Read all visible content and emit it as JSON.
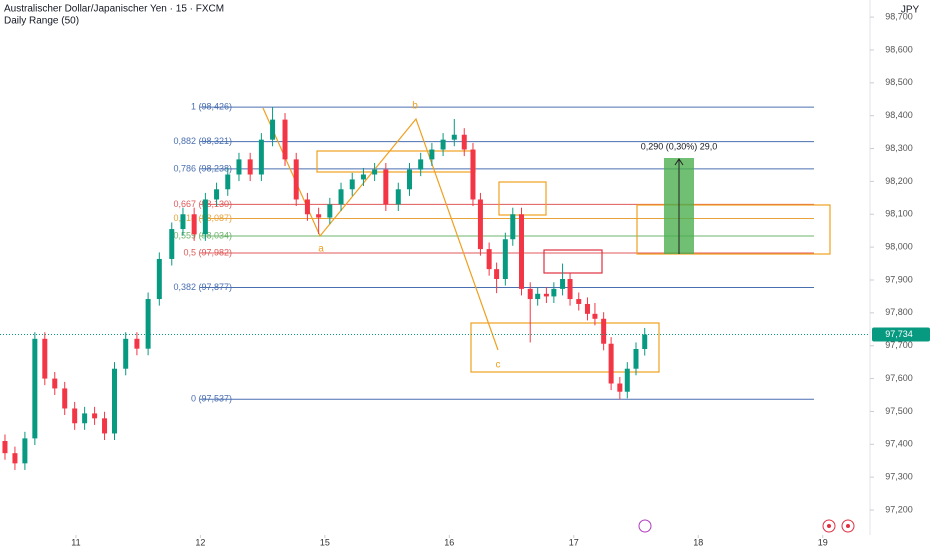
{
  "chart_data": {
    "type": "candlestick",
    "title": "Australischer Dollar/Japanischer Yen · 15 · FXCM",
    "subtitle": "Daily Range (50)",
    "currency": "JPY",
    "up_color": "#089981",
    "down_color": "#f23645",
    "x": [
      -0.57,
      -0.49,
      -0.41,
      -0.33,
      -0.25,
      -0.17,
      -0.09,
      -0.01,
      0.07,
      0.15,
      0.23,
      0.31,
      0.4,
      0.49,
      0.58,
      0.67,
      0.77,
      0.86,
      0.95,
      1.04,
      1.13,
      1.22,
      1.31,
      1.4,
      1.49,
      1.58,
      1.68,
      1.77,
      1.86,
      1.95,
      2.04,
      2.13,
      2.22,
      2.31,
      2.4,
      2.49,
      2.59,
      2.68,
      2.77,
      2.86,
      2.95,
      3.04,
      3.12,
      3.19,
      3.25,
      3.32,
      3.38,
      3.45,
      3.51,
      3.58,
      3.65,
      3.71,
      3.78,
      3.84,
      3.91,
      3.97,
      4.04,
      4.11,
      4.17,
      4.24,
      4.3,
      4.37,
      4.43,
      4.5,
      4.57
    ],
    "open": [
      97410,
      97373,
      97342,
      97418,
      97721,
      97600,
      97570,
      97509,
      97464,
      97494,
      97479,
      97433,
      97630,
      97721,
      97691,
      97842,
      97964,
      98055,
      98100,
      98039,
      98145,
      98176,
      98221,
      98267,
      98221,
      98327,
      98388,
      98267,
      98145,
      98100,
      98090,
      98130,
      98176,
      98206,
      98221,
      98236,
      98130,
      98176,
      98236,
      98267,
      98297,
      98327,
      98342,
      98297,
      98145,
      97994,
      97933,
      97903,
      98024,
      98100,
      97873,
      97842,
      97858,
      97850,
      97873,
      97903,
      97842,
      97827,
      97797,
      97782,
      97706,
      97585,
      97560,
      97630,
      97690
    ],
    "high": [
      97430,
      97393,
      97438,
      97741,
      97741,
      97620,
      97590,
      97529,
      97514,
      97514,
      97499,
      97650,
      97741,
      97741,
      97862,
      97984,
      98075,
      98120,
      98120,
      98165,
      98196,
      98241,
      98287,
      98287,
      98347,
      98426,
      98408,
      98287,
      98165,
      98120,
      98150,
      98196,
      98226,
      98241,
      98256,
      98256,
      98196,
      98256,
      98287,
      98317,
      98347,
      98390,
      98362,
      98317,
      98165,
      98014,
      97953,
      98044,
      98120,
      98120,
      97893,
      97878,
      97878,
      97893,
      97950,
      97923,
      97862,
      97847,
      97830,
      97802,
      97726,
      97605,
      97650,
      97710,
      97754
    ],
    "low": [
      97353,
      97322,
      97322,
      97398,
      97580,
      97550,
      97489,
      97444,
      97444,
      97459,
      97413,
      97413,
      97610,
      97671,
      97671,
      97822,
      97944,
      98035,
      98019,
      98019,
      98125,
      98156,
      98201,
      98201,
      98201,
      98307,
      98247,
      98125,
      98080,
      98040,
      98070,
      98110,
      98156,
      98186,
      98201,
      98110,
      98110,
      98156,
      98216,
      98247,
      98277,
      98307,
      98277,
      98125,
      97974,
      97913,
      97860,
      97883,
      98004,
      97853,
      97710,
      97822,
      97830,
      97830,
      97853,
      97822,
      97807,
      97777,
      97762,
      97686,
      97565,
      97537,
      97540,
      97610,
      97670
    ],
    "close": [
      97373,
      97342,
      97418,
      97721,
      97600,
      97570,
      97509,
      97464,
      97494,
      97479,
      97433,
      97630,
      97721,
      97691,
      97842,
      97964,
      98055,
      98100,
      98039,
      98145,
      98176,
      98221,
      98267,
      98221,
      98327,
      98388,
      98267,
      98145,
      98100,
      98090,
      98130,
      98176,
      98206,
      98221,
      98236,
      98130,
      98176,
      98236,
      98267,
      98297,
      98327,
      98342,
      98297,
      98145,
      97994,
      97933,
      97903,
      98024,
      98100,
      97873,
      97842,
      97858,
      97850,
      97873,
      97903,
      97842,
      97827,
      97797,
      97782,
      97706,
      97585,
      97560,
      97630,
      97690,
      97734
    ],
    "xlim": [
      -0.61,
      6.38
    ],
    "xticks": [
      {
        "value": 0,
        "label": "11"
      },
      {
        "value": 1,
        "label": "12"
      },
      {
        "value": 2,
        "label": "15"
      },
      {
        "value": 3,
        "label": "16"
      },
      {
        "value": 4,
        "label": "17"
      },
      {
        "value": 5,
        "label": "18"
      },
      {
        "value": 6,
        "label": "19"
      }
    ],
    "ylim": [
      97124,
      98752
    ],
    "yticks": [
      {
        "value": 97200,
        "label": "97,200"
      },
      {
        "value": 97300,
        "label": "97,300"
      },
      {
        "value": 97400,
        "label": "97,400"
      },
      {
        "value": 97500,
        "label": "97,500"
      },
      {
        "value": 97600,
        "label": "97,600"
      },
      {
        "value": 97700,
        "label": "97,700"
      },
      {
        "value": 97800,
        "label": "97,800"
      },
      {
        "value": 97900,
        "label": "97,900"
      },
      {
        "value": 98000,
        "label": "98,000"
      },
      {
        "value": 98100,
        "label": "98,100"
      },
      {
        "value": 98200,
        "label": "98,200"
      },
      {
        "value": 98300,
        "label": "98,300"
      },
      {
        "value": 98400,
        "label": "98,400"
      },
      {
        "value": 98500,
        "label": "98,500"
      },
      {
        "value": 98600,
        "label": "98,600"
      },
      {
        "value": 98700,
        "label": "98,700"
      }
    ],
    "last_price": {
      "value": 97734,
      "label": "97,734"
    },
    "fib_levels": [
      {
        "value": 98426,
        "label": "1 (98,426)",
        "color": "#4a6fb0"
      },
      {
        "value": 98321,
        "label": "0,882 (98,321)",
        "color": "#4a6fb0"
      },
      {
        "value": 98238,
        "label": "0,786 (98,238)",
        "color": "#4a6fb0"
      },
      {
        "value": 98130,
        "label": "0,667 (98,130)",
        "color": "#e05a5a"
      },
      {
        "value": 98087,
        "label": "0,618 (98,087)",
        "color": "#e8a33c"
      },
      {
        "value": 98034,
        "label": "0,559 (98,034)",
        "color": "#6cb36c"
      },
      {
        "value": 97982,
        "label": "0,5 (97,982)",
        "color": "#e05a5a"
      },
      {
        "value": 97877,
        "label": "0,382 (97,877)",
        "color": "#4a6fb0"
      },
      {
        "value": 97537,
        "label": "0 (97,537)",
        "color": "#4a6fb0"
      }
    ],
    "measure_label": "0,290 (0,30%) 29,0",
    "wave_labels": [
      "a",
      "b",
      "c"
    ]
  }
}
